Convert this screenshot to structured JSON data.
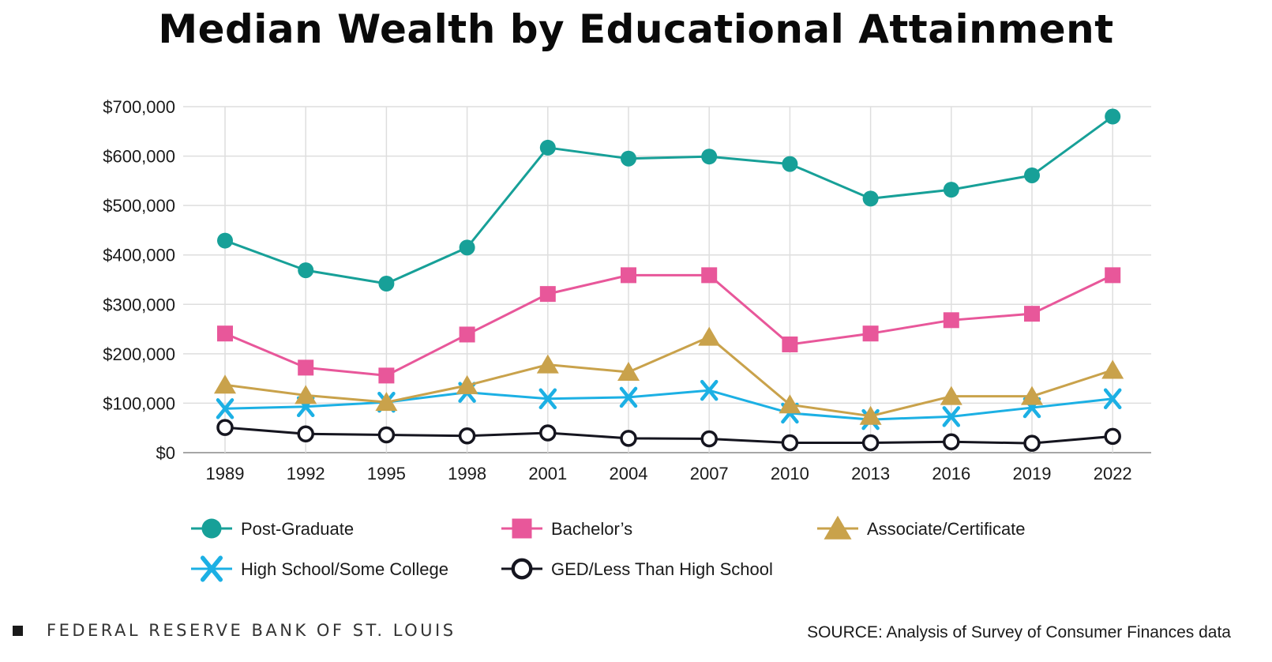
{
  "title": "Median Wealth by Educational Attainment",
  "footer": {
    "organization": "FEDERAL RESERVE BANK OF ST. LOUIS",
    "source": "SOURCE: Analysis of Survey of Consumer Finances data"
  },
  "colors": {
    "post_graduate": "#17a098",
    "bachelors": "#e8579a",
    "associate": "#c9a24b",
    "high_school": "#1cb0e4",
    "ged": "#15151f",
    "grid": "#dedede",
    "axis": "#888888"
  },
  "chart_data": {
    "type": "line",
    "title": "Median Wealth by Educational Attainment",
    "xlabel": "",
    "ylabel": "",
    "x": [
      "1989",
      "1992",
      "1995",
      "1998",
      "2001",
      "2004",
      "2007",
      "2010",
      "2013",
      "2016",
      "2019",
      "2022"
    ],
    "ylim": [
      0,
      700000
    ],
    "yticks": [
      0,
      100000,
      200000,
      300000,
      400000,
      500000,
      600000,
      700000
    ],
    "ytick_labels": [
      "$0",
      "$100,000",
      "$200,000",
      "$300,000",
      "$400,000",
      "$500,000",
      "$600,000",
      "$700,000"
    ],
    "grid": true,
    "legend_position": "bottom",
    "series": [
      {
        "name": "Post-Graduate",
        "key": "post_graduate",
        "marker": "circle",
        "values": [
          429000,
          369000,
          342000,
          415000,
          617000,
          595000,
          599000,
          584000,
          514000,
          532000,
          561000,
          680000
        ]
      },
      {
        "name": "Bachelor’s",
        "key": "bachelors",
        "marker": "square",
        "values": [
          241000,
          172000,
          156000,
          239000,
          321000,
          359000,
          359000,
          219000,
          241000,
          268000,
          281000,
          359000
        ]
      },
      {
        "name": "Associate/Certificate",
        "key": "associate",
        "marker": "triangle",
        "values": [
          137000,
          116000,
          102000,
          136000,
          178000,
          163000,
          234000,
          97000,
          74000,
          114000,
          114000,
          167000
        ]
      },
      {
        "name": "High School/Some College",
        "key": "high_school",
        "marker": "x",
        "values": [
          89000,
          93000,
          102000,
          122000,
          109000,
          112000,
          126000,
          80000,
          67000,
          73000,
          91000,
          109000
        ]
      },
      {
        "name": "GED/Less Than High School",
        "key": "ged",
        "marker": "open-circle",
        "values": [
          51000,
          38000,
          36000,
          34000,
          40000,
          29000,
          28000,
          20000,
          20000,
          22000,
          19000,
          33000
        ]
      }
    ]
  }
}
